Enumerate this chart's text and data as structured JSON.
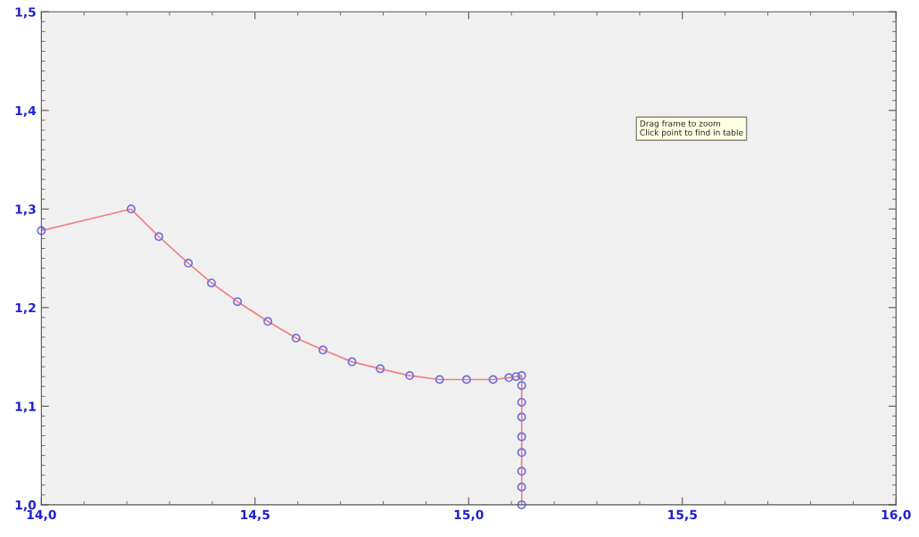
{
  "chart_data": {
    "type": "line",
    "series": [
      {
        "color": "#f08080",
        "colors": [
          "#7070e0",
          "#7070e0",
          "#7070e0",
          "#7070e0",
          "#7070e0",
          "#7070e0",
          "#7070e0",
          "#7070e0",
          "#7070e0",
          "#7070e0",
          "#7070e0",
          "#7070e0",
          "#7070e0",
          "#7070e0",
          "#7070e0",
          "#7070e0",
          "#7070e0",
          "#7070e0",
          "#7070e0",
          "#7070e0",
          "#7070e0",
          "#7070e0",
          "#7070e0",
          "#7070e0",
          "#7070e0",
          "#7070e0"
        ],
        "x": [
          14.0,
          14.21,
          14.275,
          14.344,
          14.398,
          14.459,
          14.53,
          14.596,
          14.659,
          14.727,
          14.793,
          14.862,
          14.932,
          14.995,
          15.057,
          15.094,
          15.111,
          15.124,
          15.124,
          15.124,
          15.124,
          15.124,
          15.124,
          15.124,
          15.124,
          15.124
        ],
        "values": [
          1.278,
          1.3,
          1.272,
          1.245,
          1.225,
          1.206,
          1.186,
          1.169,
          1.157,
          1.145,
          1.138,
          1.131,
          1.127,
          1.127,
          1.127,
          1.129,
          1.13,
          1.131,
          1.121,
          1.104,
          1.089,
          1.069,
          1.053,
          1.034,
          1.018,
          1.0
        ]
      }
    ],
    "marker": "circle",
    "line_style": "solid",
    "grid": false,
    "legend": false,
    "xlim": [
      14.0,
      16.0
    ],
    "ylim": [
      1.0,
      1.5
    ],
    "xticks": [
      {
        "value": 14.0,
        "label": "14,0"
      },
      {
        "value": 14.5,
        "label": "14,5"
      },
      {
        "value": 15.0,
        "label": "15,0"
      },
      {
        "value": 15.5,
        "label": "15,5"
      },
      {
        "value": 16.0,
        "label": "16,0"
      }
    ],
    "yticks": [
      {
        "value": 1.0,
        "label": "1,0"
      },
      {
        "value": 1.1,
        "label": "1,1"
      },
      {
        "value": 1.2,
        "label": "1,2"
      },
      {
        "value": 1.3,
        "label": "1,3"
      },
      {
        "value": 1.4,
        "label": "1,4"
      },
      {
        "value": 1.5,
        "label": "1,5"
      }
    ],
    "annotations": [
      "Drag frame to zoom\nClick point to find in table"
    ]
  }
}
